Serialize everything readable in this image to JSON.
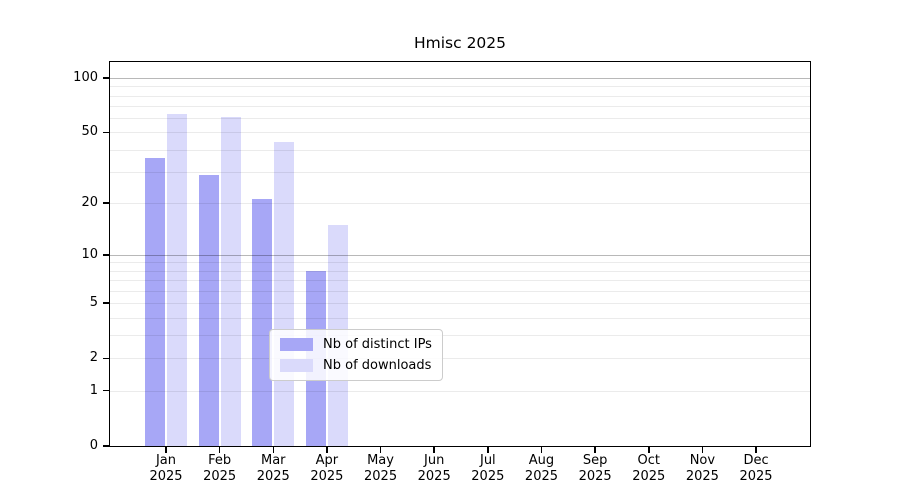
{
  "figure": {
    "title": "Hmisc 2025"
  },
  "chart_data": {
    "type": "bar",
    "title": "Hmisc 2025",
    "categories": [
      "Jan",
      "Feb",
      "Mar",
      "Apr",
      "May",
      "Jun",
      "Jul",
      "Aug",
      "Sep",
      "Oct",
      "Nov",
      "Dec"
    ],
    "category_year": "2025",
    "series": [
      {
        "name": "Nb of distinct IPs",
        "color": "#a7a7f6",
        "values": [
          36,
          29,
          21,
          8,
          0,
          0,
          0,
          0,
          0,
          0,
          0,
          0
        ]
      },
      {
        "name": "Nb of downloads",
        "color": "#dadafb",
        "values": [
          63,
          61,
          44,
          15,
          0,
          0,
          0,
          0,
          0,
          0,
          0,
          0
        ]
      }
    ],
    "yscale": "log1p",
    "ylim": [
      0,
      122
    ],
    "yticks": [
      0,
      1,
      2,
      5,
      10,
      20,
      50,
      100
    ],
    "minor_gridlines": [
      1,
      2,
      3,
      4,
      5,
      6,
      7,
      8,
      9,
      20,
      30,
      40,
      50,
      60,
      70,
      80,
      90
    ],
    "major_gridlines": [
      10,
      100
    ],
    "grid": true,
    "legend_position": "lower-center",
    "xlabel": "",
    "ylabel": ""
  }
}
